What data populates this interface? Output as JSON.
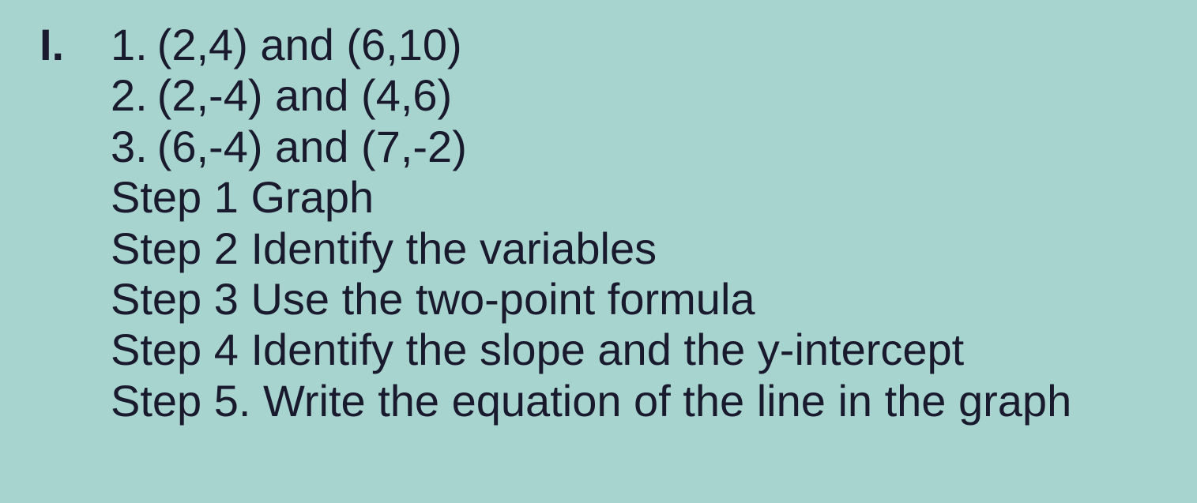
{
  "section_marker": "I.",
  "items": [
    {
      "number": "1.",
      "text": "(2,4) and (6,10)"
    },
    {
      "number": "2.",
      "text": "(2,-4) and (4,6)"
    },
    {
      "number": "3.",
      "text": "(6,-4) and (7,-2)"
    }
  ],
  "steps": [
    "Step 1 Graph",
    "Step 2 Identify the variables",
    "Step 3 Use the two-point formula",
    "Step 4 Identify the slope and the y-intercept",
    "Step 5. Write the equation of the line in the graph"
  ],
  "colors": {
    "background": "#a8d4d0",
    "text": "#1a1a2e"
  },
  "font": {
    "family": "Arial",
    "size_pt": 42
  }
}
